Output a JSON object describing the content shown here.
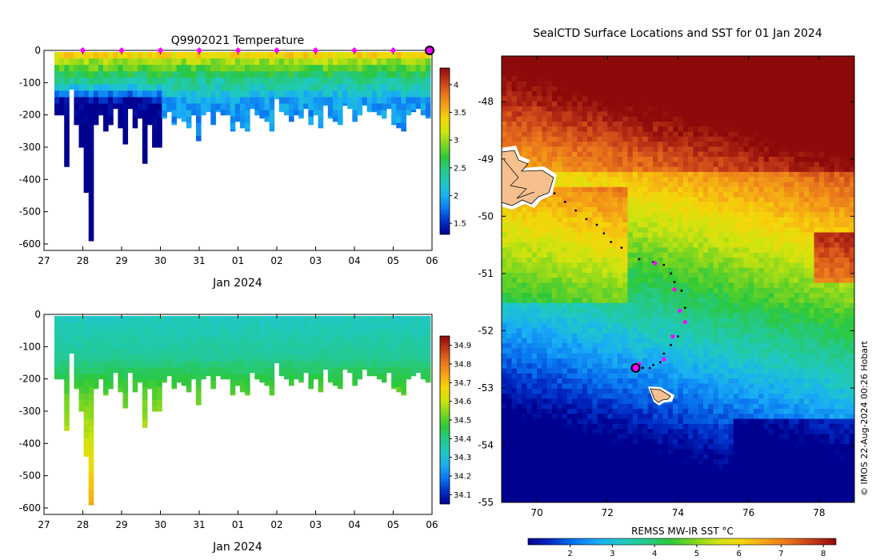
{
  "colors": {
    "temp_cmap": [
      "#00008f",
      "#0030c8",
      "#0a78f0",
      "#1aaef5",
      "#1fc9c2",
      "#25c98a",
      "#2cc83c",
      "#7fd61f",
      "#cfe40f",
      "#f5d60a",
      "#f5a316",
      "#e8731c",
      "#c33a18",
      "#8c0a0a"
    ],
    "sst_cmap": [
      "#00008f",
      "#0030c8",
      "#0a78f0",
      "#1aaef5",
      "#1fc9c2",
      "#25c98a",
      "#2cc83c",
      "#7fd61f",
      "#cfe40f",
      "#f5d60a",
      "#f5a316",
      "#e8731c",
      "#c33a18",
      "#8c0a0a"
    ],
    "marker": "#ff00ff",
    "land": "#f5c08e"
  },
  "chart_data": [
    {
      "type": "heatmap",
      "title": "Q9902021  Temperature",
      "xlabel": "Jan 2024",
      "x_tick_labels": [
        "27",
        "28",
        "29",
        "30",
        "31",
        "01",
        "02",
        "03",
        "04",
        "05",
        "06"
      ],
      "y_tick_labels": [
        "0",
        "-100",
        "-200",
        "-300",
        "-400",
        "-500",
        "-600"
      ],
      "ylim": [
        -620,
        0
      ],
      "colorbar": {
        "range": [
          1.3,
          4.3
        ],
        "tick_labels": [
          "1.5",
          "2",
          "2.5",
          "3",
          "3.5",
          "4"
        ]
      },
      "profile_markers_day_offset": [
        1,
        2,
        3,
        4,
        5,
        6,
        7,
        8,
        9,
        10
      ],
      "profile_max_depth_m": [
        -200,
        -200,
        -360,
        -120,
        -230,
        -300,
        -440,
        -590,
        -230,
        -200,
        -250,
        -230,
        -180,
        -240,
        -290,
        -180,
        -240,
        -210,
        -350,
        -230,
        -300,
        -300,
        -210,
        -190,
        -230,
        -210,
        -220,
        -240,
        -200,
        -280,
        -200,
        -190,
        -230,
        -190,
        -200,
        -200,
        -250,
        -220,
        -240,
        -250,
        -180,
        -200,
        -210,
        -220,
        -250,
        -150,
        -190,
        -200,
        -220,
        -200,
        -210,
        -180,
        -230,
        -200,
        -240,
        -170,
        -210,
        -220,
        -230,
        -170,
        -180,
        -220,
        -200,
        -170,
        -190,
        -190,
        -200,
        -210,
        -180,
        -230,
        -240,
        -250,
        -200,
        -190,
        -180,
        -200,
        -210
      ]
    },
    {
      "type": "heatmap",
      "title": "",
      "xlabel": "Jan 2024",
      "x_tick_labels": [
        "27",
        "28",
        "29",
        "30",
        "31",
        "01",
        "02",
        "03",
        "04",
        "05",
        "06"
      ],
      "y_tick_labels": [
        "0",
        "-100",
        "-200",
        "-300",
        "-400",
        "-500",
        "-600"
      ],
      "ylim": [
        -620,
        0
      ],
      "colorbar": {
        "range": [
          34.05,
          34.95
        ],
        "tick_labels": [
          "34.1",
          "34.2",
          "34.3",
          "34.4",
          "34.5",
          "34.6",
          "34.7",
          "34.8",
          "34.9"
        ]
      }
    },
    {
      "type": "heatmap",
      "title": "SealCTD Surface Locations and SST for 01 Jan 2024",
      "x_tick_labels": [
        "70",
        "72",
        "74",
        "76",
        "78"
      ],
      "y_tick_labels": [
        "-48",
        "-49",
        "-50",
        "-51",
        "-52",
        "-53",
        "-54",
        "-55"
      ],
      "xlim": [
        69,
        79
      ],
      "ylim": [
        -55,
        -47.2
      ],
      "colorbar": {
        "label": "REMSS MW-IR SST °C",
        "range": [
          1,
          8.3
        ],
        "tick_labels": [
          "2",
          "3",
          "4",
          "5",
          "6",
          "7",
          "8"
        ]
      },
      "track_lon": [
        70.5,
        70.8,
        71.1,
        71.4,
        71.7,
        71.9,
        72.1,
        72.4,
        72.9,
        73.3,
        73.6,
        73.8,
        73.9,
        74.1,
        74.2,
        74.2,
        74.0,
        73.8,
        73.6,
        73.5,
        73.3,
        73.2,
        73.0,
        72.9
      ],
      "track_lat": [
        -49.6,
        -49.75,
        -49.9,
        -50.05,
        -50.15,
        -50.3,
        -50.45,
        -50.55,
        -50.75,
        -50.8,
        -50.85,
        -51.0,
        -51.15,
        -51.3,
        -51.6,
        -51.85,
        -52.1,
        -52.25,
        -52.4,
        -52.55,
        -52.6,
        -52.65,
        -52.65,
        -52.6
      ],
      "profile_lon": [
        73.35,
        73.9,
        74.05,
        74.2,
        73.85,
        73.6,
        72.9
      ],
      "profile_lat": [
        -50.82,
        -51.28,
        -51.65,
        -51.85,
        -52.1,
        -52.5,
        -52.58
      ],
      "latest_lon": 72.8,
      "latest_lat": -52.65,
      "watermark": "© IMOS 22-Aug-2024 00:26 Hobart"
    }
  ]
}
